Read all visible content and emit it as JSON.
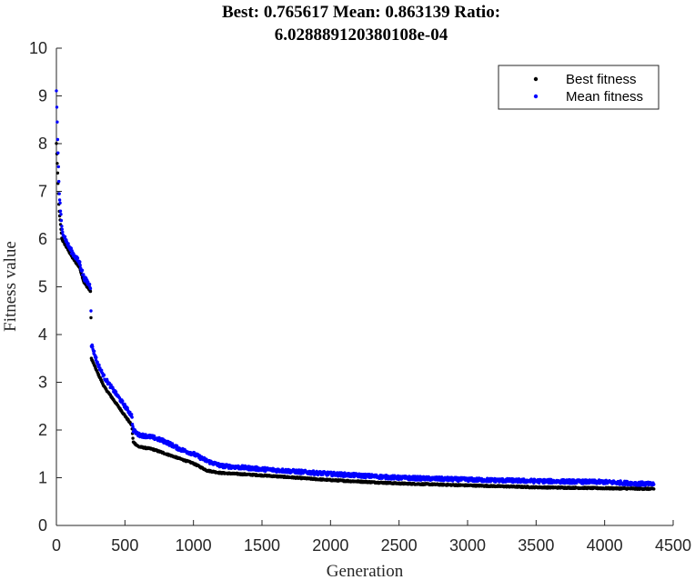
{
  "chart_data": {
    "type": "scatter",
    "title": [
      "Best: 0.765617 Mean: 0.863139 Ratio:",
      "6.028889120380108e-04"
    ],
    "xlabel": "Generation",
    "ylabel": "Fitness value",
    "xlim": [
      0,
      4500
    ],
    "ylim": [
      0,
      10
    ],
    "xticks": [
      0,
      500,
      1000,
      1500,
      2000,
      2500,
      3000,
      3500,
      4000,
      4500
    ],
    "yticks": [
      0,
      1,
      2,
      3,
      4,
      5,
      6,
      7,
      8,
      9,
      10
    ],
    "grid": false,
    "legend_position": "top-right",
    "generations": 4360,
    "series": [
      {
        "name": "Best fitness",
        "color": "#000000",
        "marker": "dot",
        "keypoints": [
          [
            0,
            8.0
          ],
          [
            20,
            6.6
          ],
          [
            40,
            6.0
          ],
          [
            80,
            5.8
          ],
          [
            120,
            5.6
          ],
          [
            170,
            5.4
          ],
          [
            200,
            5.1
          ],
          [
            250,
            4.9
          ],
          [
            255,
            3.5
          ],
          [
            300,
            3.2
          ],
          [
            350,
            2.9
          ],
          [
            400,
            2.7
          ],
          [
            450,
            2.5
          ],
          [
            500,
            2.3
          ],
          [
            550,
            2.1
          ],
          [
            560,
            1.75
          ],
          [
            600,
            1.65
          ],
          [
            700,
            1.6
          ],
          [
            800,
            1.5
          ],
          [
            900,
            1.4
          ],
          [
            1000,
            1.3
          ],
          [
            1100,
            1.15
          ],
          [
            1200,
            1.1
          ],
          [
            1500,
            1.05
          ],
          [
            2000,
            0.95
          ],
          [
            2500,
            0.88
          ],
          [
            3000,
            0.84
          ],
          [
            3500,
            0.8
          ],
          [
            4000,
            0.78
          ],
          [
            4360,
            0.765617
          ]
        ]
      },
      {
        "name": "Mean fitness",
        "color": "#0000ff",
        "marker": "dot",
        "keypoints": [
          [
            0,
            9.1
          ],
          [
            10,
            8.0
          ],
          [
            20,
            7.0
          ],
          [
            40,
            6.2
          ],
          [
            80,
            5.9
          ],
          [
            120,
            5.7
          ],
          [
            170,
            5.5
          ],
          [
            200,
            5.2
          ],
          [
            250,
            5.0
          ],
          [
            255,
            3.8
          ],
          [
            300,
            3.4
          ],
          [
            350,
            3.1
          ],
          [
            400,
            2.9
          ],
          [
            450,
            2.7
          ],
          [
            500,
            2.5
          ],
          [
            550,
            2.3
          ],
          [
            560,
            2.0
          ],
          [
            600,
            1.9
          ],
          [
            700,
            1.85
          ],
          [
            800,
            1.75
          ],
          [
            900,
            1.6
          ],
          [
            1000,
            1.5
          ],
          [
            1100,
            1.35
          ],
          [
            1200,
            1.25
          ],
          [
            1500,
            1.18
          ],
          [
            2000,
            1.08
          ],
          [
            2500,
            1.0
          ],
          [
            3000,
            0.96
          ],
          [
            3500,
            0.93
          ],
          [
            4000,
            0.91
          ],
          [
            4360,
            0.863139
          ]
        ]
      }
    ]
  }
}
